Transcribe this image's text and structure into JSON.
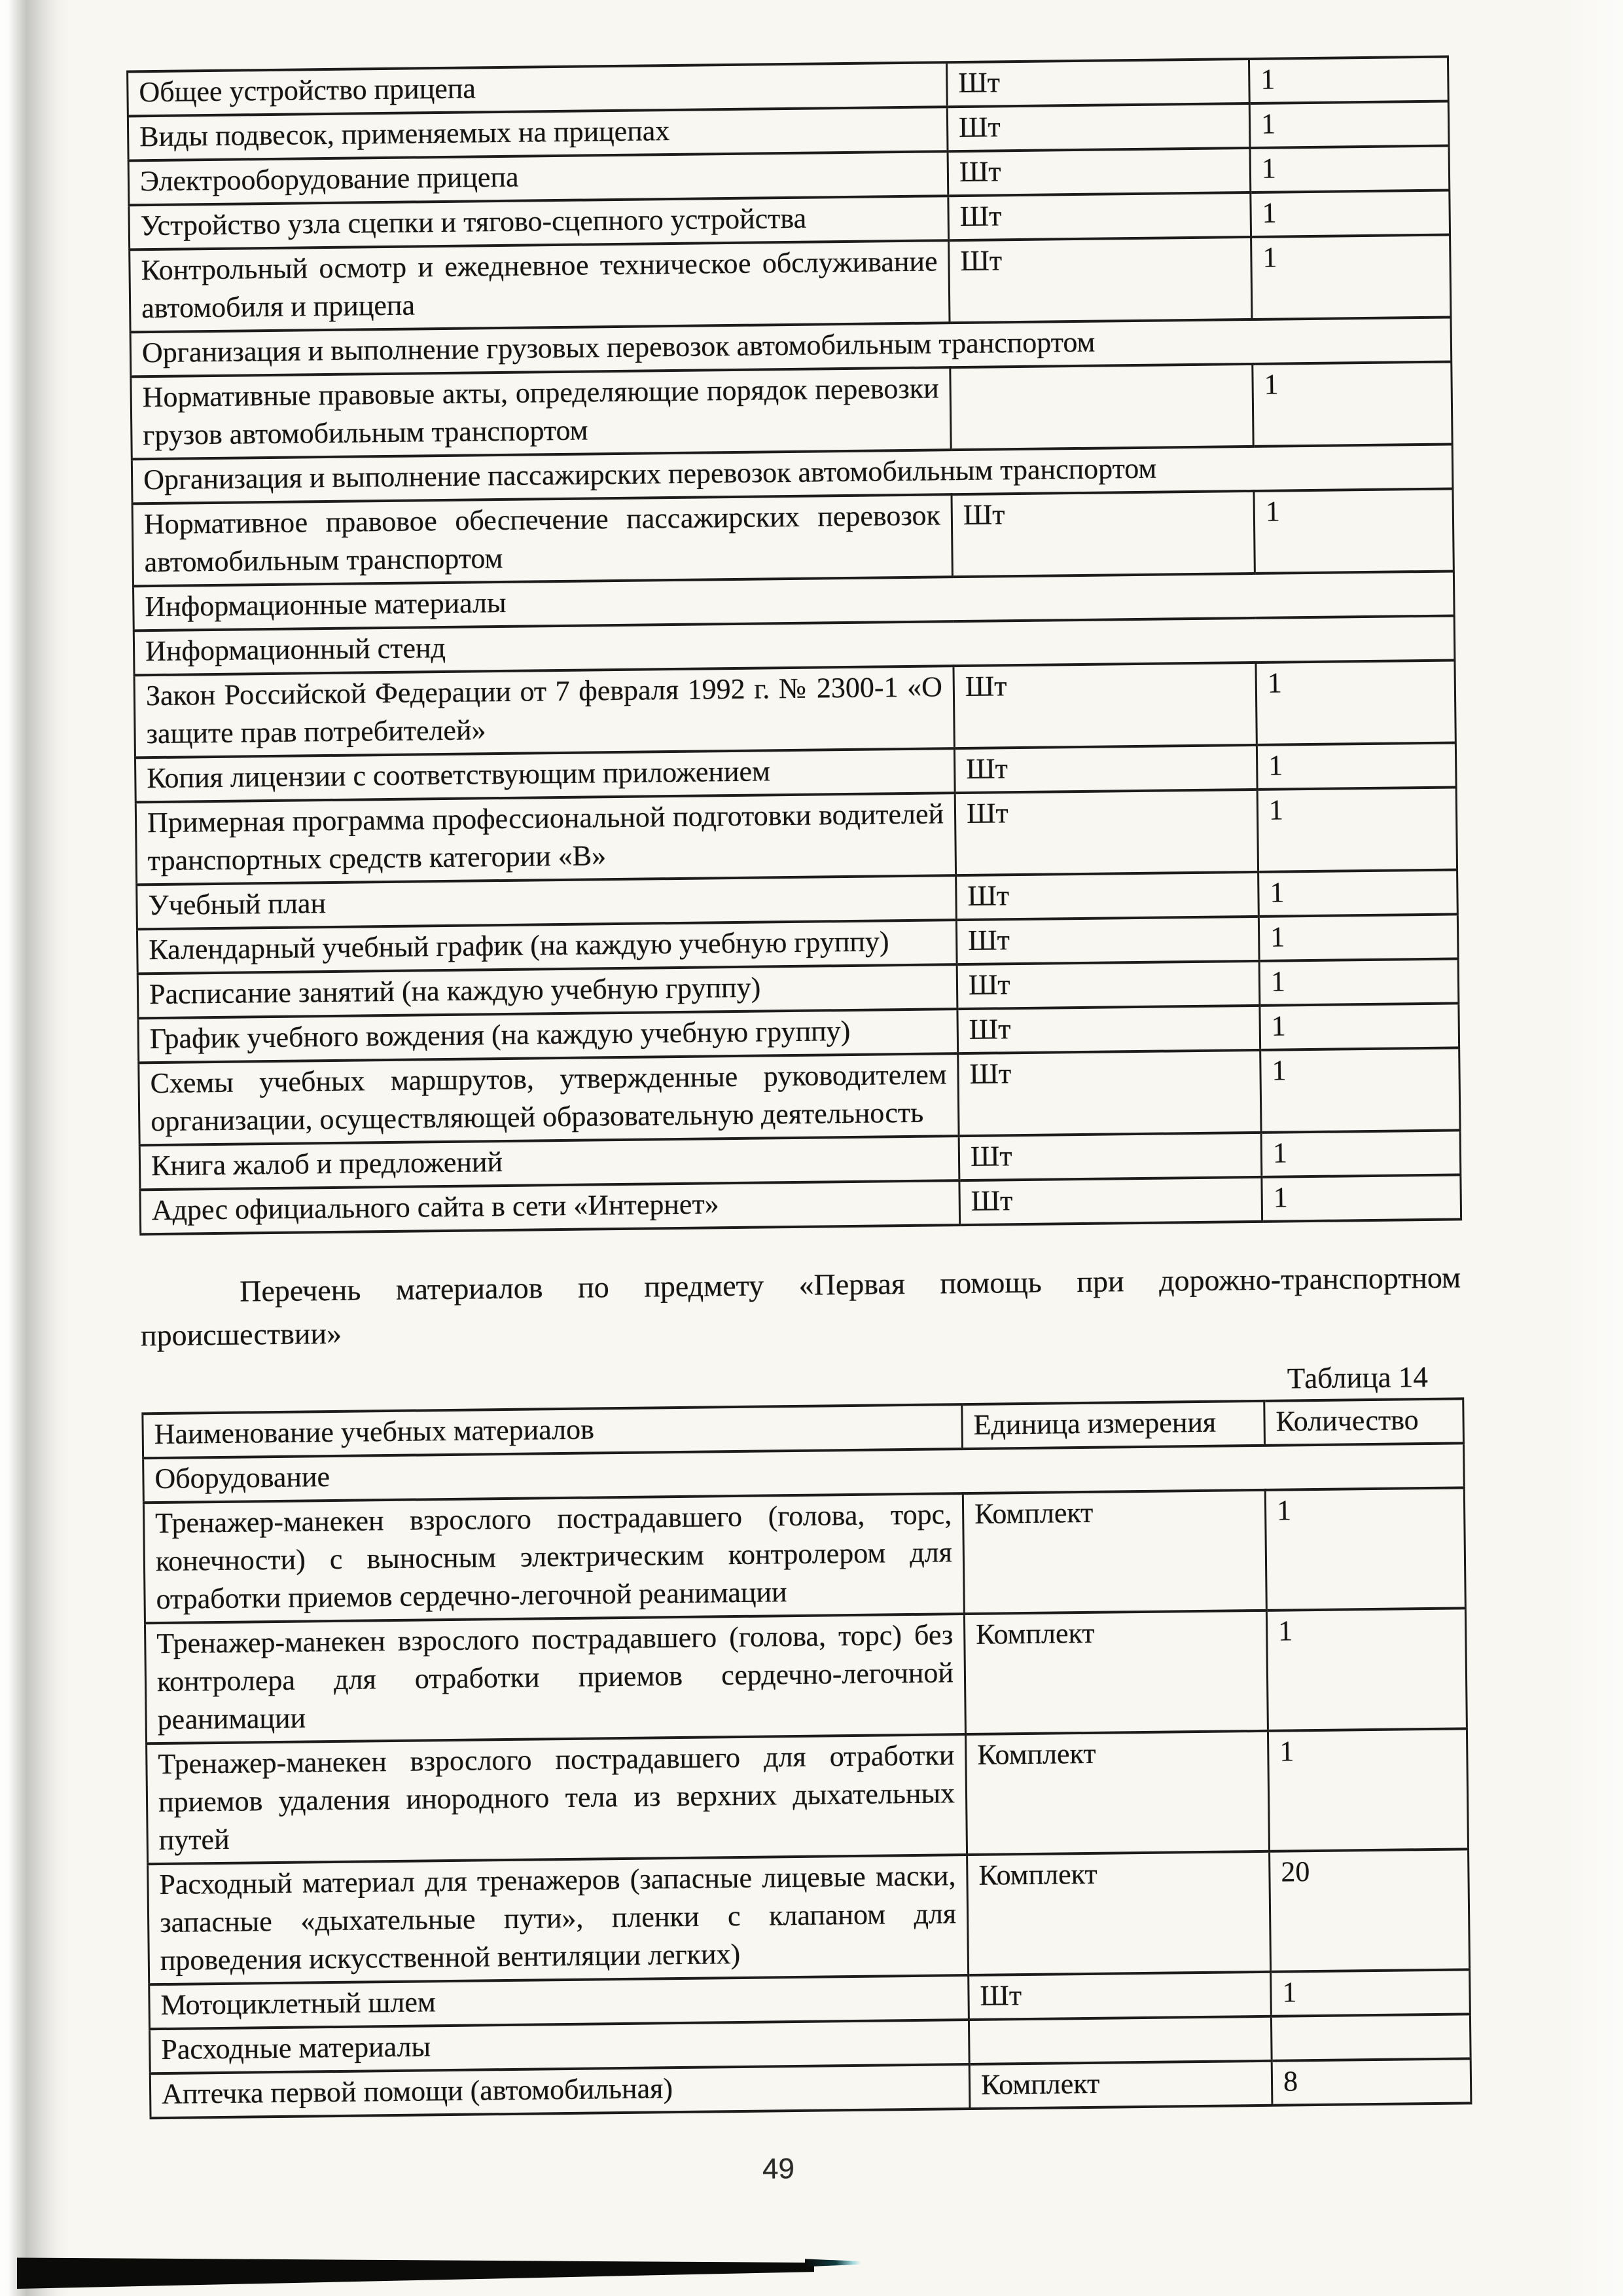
{
  "page": {
    "number": "49",
    "paper_color": "#f8f7f2",
    "ink_color": "#161513",
    "border_color": "#1d1c1a"
  },
  "table1": {
    "rows": [
      {
        "type": "item",
        "name": "Общее устройство прицепа",
        "unit": "Шт",
        "qty": "1"
      },
      {
        "type": "item",
        "name": "Виды подвесок, применяемых на прицепах",
        "unit": "Шт",
        "qty": "1"
      },
      {
        "type": "item",
        "name": "Электрооборудование прицепа",
        "unit": "Шт",
        "qty": "1"
      },
      {
        "type": "item",
        "name": "Устройство узла сцепки и тягово-сцепного устройства",
        "unit": "Шт",
        "qty": "1"
      },
      {
        "type": "item",
        "name": "Контрольный осмотр и ежедневное техническое обслуживание автомобиля и прицепа",
        "unit": "Шт",
        "qty": "1"
      },
      {
        "type": "section",
        "name": "Организация и выполнение грузовых перевозок автомобильным транспортом"
      },
      {
        "type": "item",
        "name": "Нормативные правовые акты, определяющие порядок перевозки грузов автомобильным транспортом",
        "unit": "",
        "qty": "1"
      },
      {
        "type": "section",
        "name": "Организация и выполнение пассажирских перевозок автомобильным транспортом"
      },
      {
        "type": "item",
        "name": "Нормативное правовое обеспечение пассажирских перевозок автомобильным транспортом",
        "unit": "Шт",
        "qty": "1"
      },
      {
        "type": "section",
        "name": "Информационные материалы"
      },
      {
        "type": "section",
        "name": "Информационный стенд"
      },
      {
        "type": "item",
        "name": "Закон Российской Федерации от 7 февраля 1992 г. № 2300-1 «О защите прав потребителей»",
        "unit": "Шт",
        "qty": "1"
      },
      {
        "type": "item",
        "name": "Копия лицензии с соответствующим приложением",
        "unit": "Шт",
        "qty": "1"
      },
      {
        "type": "item",
        "name": "Примерная программа профессиональной подготовки водителей транспортных средств категории «В»",
        "unit": "Шт",
        "qty": "1"
      },
      {
        "type": "item",
        "name": "Учебный план",
        "unit": "Шт",
        "qty": "1"
      },
      {
        "type": "item",
        "name": "Календарный учебный график (на каждую учебную группу)",
        "unit": "Шт",
        "qty": "1"
      },
      {
        "type": "item",
        "name": "Расписание занятий (на каждую учебную группу)",
        "unit": "Шт",
        "qty": "1"
      },
      {
        "type": "item",
        "name": "График учебного вождения (на каждую учебную группу)",
        "unit": "Шт",
        "qty": "1"
      },
      {
        "type": "item",
        "name": "Схемы учебных маршрутов, утвержденные руководителем организации, осуществляющей образовательную деятельность",
        "unit": "Шт",
        "qty": "1"
      },
      {
        "type": "item",
        "name": "Книга жалоб и предложений",
        "unit": "Шт",
        "qty": "1"
      },
      {
        "type": "item",
        "name": "Адрес официального сайта в сети «Интернет»",
        "unit": "Шт",
        "qty": "1"
      }
    ]
  },
  "intro_paragraph": "Перечень материалов по предмету «Первая помощь при дорожно-транспортном происшествии»",
  "table2": {
    "caption": "Таблица 14",
    "headers": {
      "name": "Наименование учебных материалов",
      "unit": "Единица измерения",
      "qty": "Количество"
    },
    "rows": [
      {
        "type": "section",
        "name": "Оборудование"
      },
      {
        "type": "item",
        "name": "Тренажер-манекен взрослого пострадавшего (голова, торс, конечности) с выносным электрическим контролером для отработки приемов сердечно-легочной реанимации",
        "unit": "Комплект",
        "qty": "1"
      },
      {
        "type": "item",
        "name": "Тренажер-манекен взрослого пострадавшего (голова, торс) без контролера для отработки приемов сердечно-легочной реанимации",
        "unit": "Комплект",
        "qty": "1"
      },
      {
        "type": "item",
        "name": "Тренажер-манекен взрослого пострадавшего для отработки приемов удаления инородного тела из верхних дыхательных путей",
        "unit": "Комплект",
        "qty": "1"
      },
      {
        "type": "item",
        "name": "Расходный материал для тренажеров (запасные лицевые маски, запасные «дыхательные пути», пленки с клапаном для проведения искусственной вентиляции легких)",
        "unit": "Комплект",
        "qty": "20"
      },
      {
        "type": "item",
        "name": "Мотоциклетный шлем",
        "unit": "Шт",
        "qty": "1"
      },
      {
        "type": "item",
        "name": "Расходные материалы",
        "unit": "",
        "qty": ""
      },
      {
        "type": "item",
        "name": "Аптечка первой помощи (автомобильная)",
        "unit": "Комплект",
        "qty": "8"
      }
    ]
  }
}
